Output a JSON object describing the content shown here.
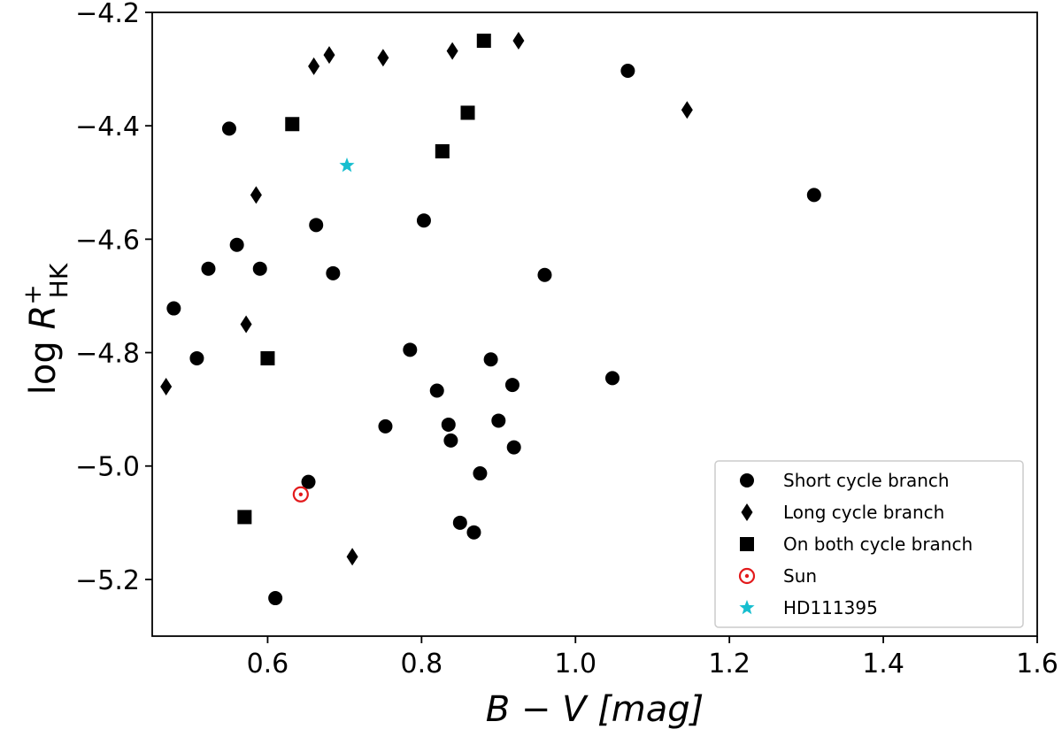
{
  "chart_data": {
    "type": "scatter",
    "xlim": [
      0.45,
      1.6
    ],
    "ylim": [
      -5.3,
      -4.2
    ],
    "x_ticks": [
      0.6,
      0.8,
      1.0,
      1.2,
      1.4,
      1.6
    ],
    "y_ticks": [
      -4.2,
      -4.4,
      -4.6,
      -4.8,
      -5.0,
      -5.2
    ],
    "x_tick_labels": [
      "0.6",
      "0.8",
      "1.0",
      "1.2",
      "1.4",
      "1.6"
    ],
    "y_tick_labels": [
      "−4.2",
      "−4.4",
      "−4.6",
      "−4.8",
      "−5.0",
      "−5.2"
    ],
    "xlabel": {
      "var1": "B",
      "op": " − ",
      "var2": "V",
      "unit": " [mag]"
    },
    "ylabel": {
      "log": "log ",
      "var": "R",
      "sup": "+",
      "sub": "HK"
    },
    "grid": false,
    "legend_position": "bottom-right",
    "series": [
      {
        "name": "Short cycle branch",
        "marker": "circle",
        "color": "#000000",
        "points": [
          [
            0.55,
            -4.405
          ],
          [
            0.56,
            -4.61
          ],
          [
            0.523,
            -4.652
          ],
          [
            0.59,
            -4.652
          ],
          [
            0.478,
            -4.722
          ],
          [
            0.508,
            -4.81
          ],
          [
            0.663,
            -4.575
          ],
          [
            0.685,
            -4.66
          ],
          [
            0.803,
            -4.567
          ],
          [
            0.785,
            -4.795
          ],
          [
            0.82,
            -4.867
          ],
          [
            0.835,
            -4.927
          ],
          [
            0.838,
            -4.955
          ],
          [
            0.753,
            -4.93
          ],
          [
            0.89,
            -4.812
          ],
          [
            0.918,
            -4.857
          ],
          [
            0.9,
            -4.92
          ],
          [
            0.92,
            -4.967
          ],
          [
            0.876,
            -5.013
          ],
          [
            0.653,
            -5.028
          ],
          [
            0.85,
            -5.1
          ],
          [
            0.868,
            -5.117
          ],
          [
            0.61,
            -5.233
          ],
          [
            0.96,
            -4.663
          ],
          [
            1.048,
            -4.845
          ],
          [
            1.068,
            -4.303
          ],
          [
            1.31,
            -4.522
          ]
        ]
      },
      {
        "name": "Long cycle branch",
        "marker": "diamond",
        "color": "#000000",
        "points": [
          [
            0.468,
            -4.86
          ],
          [
            0.572,
            -4.75
          ],
          [
            0.585,
            -4.522
          ],
          [
            0.66,
            -4.295
          ],
          [
            0.68,
            -4.275
          ],
          [
            0.75,
            -4.28
          ],
          [
            0.84,
            -4.268
          ],
          [
            0.926,
            -4.25
          ],
          [
            1.145,
            -4.372
          ],
          [
            0.71,
            -5.16
          ]
        ]
      },
      {
        "name": "On both cycle branch",
        "marker": "square",
        "color": "#000000",
        "points": [
          [
            0.632,
            -4.397
          ],
          [
            0.6,
            -4.81
          ],
          [
            0.57,
            -5.09
          ],
          [
            0.827,
            -4.445
          ],
          [
            0.86,
            -4.377
          ],
          [
            0.881,
            -4.25
          ]
        ]
      },
      {
        "name": "Sun",
        "marker": "sun",
        "color": "#e31a1c",
        "points": [
          [
            0.643,
            -5.05
          ]
        ]
      },
      {
        "name": "HD111395",
        "marker": "star",
        "color": "#17becf",
        "points": [
          [
            0.703,
            -4.47
          ]
        ]
      }
    ]
  }
}
